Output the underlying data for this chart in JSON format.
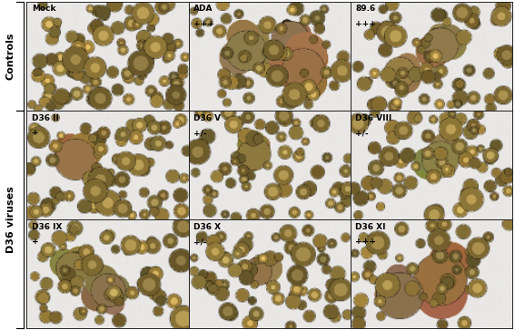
{
  "grid_labels": [
    [
      "Mock",
      "ADA",
      "89.6"
    ],
    [
      "D36 II",
      "D36 V",
      "D36 VIII"
    ],
    [
      "D36 IX",
      "D36 X",
      "D36 XI"
    ]
  ],
  "grid_sublabels": [
    [
      "",
      "+++",
      "+++"
    ],
    [
      "+",
      "+/-",
      "+/-"
    ],
    [
      "+",
      "+/-",
      "+++"
    ]
  ],
  "row_labels": [
    "Controls",
    "D36 viruses"
  ],
  "panel_border_color": "#222222",
  "label_fontsize": 6.5,
  "side_label_fontsize": 8,
  "figure_width": 5.67,
  "figure_height": 3.64,
  "bg_light": [
    0.91,
    0.9,
    0.88
  ],
  "cell_color_mean": [
    0.62,
    0.52,
    0.28
  ],
  "cell_color_std": 0.08
}
